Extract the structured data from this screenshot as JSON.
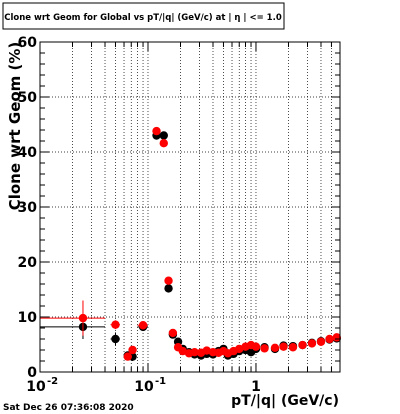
{
  "title": "Clone wrt Geom for Global vs pT/|q| (GeV/c) at | η | <= 1.0",
  "timestamp": "Sat Dec 26 07:36:08 2020",
  "chart_data": {
    "type": "scatter",
    "xlabel": "pT/|q| (GeV/c)",
    "ylabel": "Clone wrt Geom (%)",
    "xscale": "log",
    "xlim": [
      0.01,
      6
    ],
    "ylim": [
      0,
      60
    ],
    "x_ticks": [
      0.01,
      0.1,
      1
    ],
    "x_tick_labels": [
      "10",
      "10",
      "1"
    ],
    "x_tick_exponents": [
      "-2",
      "-1",
      ""
    ],
    "y_ticks": [
      0,
      10,
      20,
      30,
      40,
      50,
      60
    ],
    "grid": true,
    "colors": {
      "black_series": "#000000",
      "red_series": "#ff0000"
    },
    "series": [
      {
        "color": "black",
        "points": [
          {
            "x": 0.025,
            "y": 8.2,
            "xlo": 0.01,
            "xhi": 0.04,
            "yerr": 2.2
          },
          {
            "x": 0.05,
            "y": 6.0,
            "xlo": 0.045,
            "xhi": 0.055,
            "yerr": 1.2
          },
          {
            "x": 0.065,
            "y": 3.0,
            "yerr": 0.5
          },
          {
            "x": 0.072,
            "y": 2.8,
            "yerr": 0.8
          },
          {
            "x": 0.09,
            "y": 8.2,
            "xlo": 0.08,
            "xhi": 0.1,
            "yerr": 0.5
          },
          {
            "x": 0.12,
            "y": 43.0,
            "xlo": 0.11,
            "xhi": 0.13,
            "yerr": 0.6
          },
          {
            "x": 0.14,
            "y": 43.0,
            "yerr": 0.5
          },
          {
            "x": 0.155,
            "y": 15.2,
            "yerr": 0.5
          },
          {
            "x": 0.17,
            "y": 6.8,
            "yerr": 0.4
          },
          {
            "x": 0.19,
            "y": 5.5
          },
          {
            "x": 0.21,
            "y": 4.2
          },
          {
            "x": 0.24,
            "y": 3.6
          },
          {
            "x": 0.27,
            "y": 3.2
          },
          {
            "x": 0.31,
            "y": 3.0
          },
          {
            "x": 0.35,
            "y": 3.3
          },
          {
            "x": 0.4,
            "y": 3.2
          },
          {
            "x": 0.45,
            "y": 3.8
          },
          {
            "x": 0.5,
            "y": 4.2
          },
          {
            "x": 0.55,
            "y": 3.0
          },
          {
            "x": 0.62,
            "y": 3.3
          },
          {
            "x": 0.7,
            "y": 3.8
          },
          {
            "x": 0.8,
            "y": 4.0
          },
          {
            "x": 0.9,
            "y": 3.6
          },
          {
            "x": 1.0,
            "y": 4.2
          },
          {
            "x": 1.2,
            "y": 4.5
          },
          {
            "x": 1.5,
            "y": 4.2
          },
          {
            "x": 1.8,
            "y": 4.8
          },
          {
            "x": 2.2,
            "y": 4.7
          },
          {
            "x": 2.7,
            "y": 4.9
          },
          {
            "x": 3.3,
            "y": 5.3
          },
          {
            "x": 4.0,
            "y": 5.6
          },
          {
            "x": 4.8,
            "y": 5.9
          },
          {
            "x": 5.6,
            "y": 6.1
          }
        ]
      },
      {
        "color": "red",
        "points": [
          {
            "x": 0.025,
            "y": 9.8,
            "xlo": 0.01,
            "xhi": 0.04,
            "yerr": 3.2
          },
          {
            "x": 0.05,
            "y": 8.6,
            "xlo": 0.045,
            "xhi": 0.055,
            "yerr": 0.8
          },
          {
            "x": 0.065,
            "y": 2.8,
            "yerr": 0.6
          },
          {
            "x": 0.072,
            "y": 4.0,
            "yerr": 0.6
          },
          {
            "x": 0.09,
            "y": 8.5,
            "xlo": 0.08,
            "xhi": 0.1,
            "yerr": 0.5
          },
          {
            "x": 0.12,
            "y": 43.8,
            "xlo": 0.11,
            "xhi": 0.13,
            "yerr": 0.6
          },
          {
            "x": 0.14,
            "y": 41.6,
            "yerr": 0.6
          },
          {
            "x": 0.155,
            "y": 16.6,
            "yerr": 0.6
          },
          {
            "x": 0.17,
            "y": 7.1,
            "yerr": 0.4
          },
          {
            "x": 0.19,
            "y": 4.5
          },
          {
            "x": 0.21,
            "y": 3.8
          },
          {
            "x": 0.24,
            "y": 3.4
          },
          {
            "x": 0.27,
            "y": 3.6
          },
          {
            "x": 0.31,
            "y": 3.5
          },
          {
            "x": 0.35,
            "y": 3.9
          },
          {
            "x": 0.4,
            "y": 3.6
          },
          {
            "x": 0.45,
            "y": 3.5
          },
          {
            "x": 0.5,
            "y": 3.8
          },
          {
            "x": 0.55,
            "y": 3.4
          },
          {
            "x": 0.62,
            "y": 3.8
          },
          {
            "x": 0.7,
            "y": 4.2
          },
          {
            "x": 0.8,
            "y": 4.6
          },
          {
            "x": 0.9,
            "y": 4.9
          },
          {
            "x": 1.0,
            "y": 4.6
          },
          {
            "x": 1.2,
            "y": 4.3
          },
          {
            "x": 1.5,
            "y": 4.4
          },
          {
            "x": 1.8,
            "y": 4.6
          },
          {
            "x": 2.2,
            "y": 4.5
          },
          {
            "x": 2.7,
            "y": 4.9
          },
          {
            "x": 3.3,
            "y": 5.2
          },
          {
            "x": 4.0,
            "y": 5.5
          },
          {
            "x": 4.8,
            "y": 6.0
          },
          {
            "x": 5.6,
            "y": 6.3
          }
        ]
      }
    ]
  }
}
